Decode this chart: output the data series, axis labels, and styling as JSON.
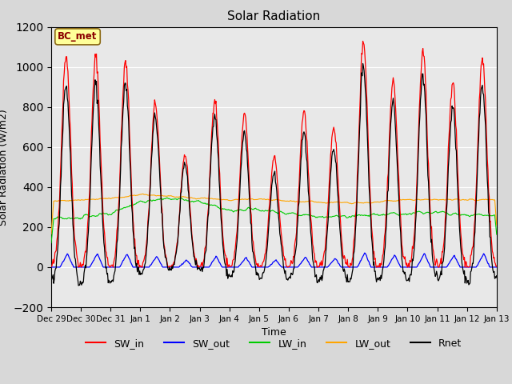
{
  "title": "Solar Radiation",
  "xlabel": "Time",
  "ylabel": "Solar Radiation (W/m2)",
  "ylim": [
    -200,
    1200
  ],
  "annotation": "BC_met",
  "legend_entries": [
    "SW_in",
    "SW_out",
    "LW_in",
    "LW_out",
    "Rnet"
  ],
  "line_colors": {
    "SW_in": "#FF0000",
    "SW_out": "#0000FF",
    "LW_in": "#00CC00",
    "LW_out": "#FFA500",
    "Rnet": "#000000"
  },
  "background_color": "#D8D8D8",
  "plot_bg_color": "#E8E8E8",
  "tick_labels": [
    "Dec 29",
    "Dec 30",
    "Dec 31",
    "Jan 1",
    "Jan 2",
    "Jan 3",
    "Jan 4",
    "Jan 5",
    "Jan 6",
    "Jan 7",
    "Jan 8",
    "Jan 9",
    "Jan 10",
    "Jan 11",
    "Jan 12",
    "Jan 13"
  ],
  "yticks": [
    -200,
    0,
    200,
    400,
    600,
    800,
    1000,
    1200
  ],
  "day_peaks_sw_in": [
    1060,
    1050,
    1020,
    820,
    560,
    840,
    760,
    550,
    780,
    700,
    1130,
    930,
    1080,
    920,
    1040
  ],
  "lw_in_trend": [
    240,
    245,
    270,
    330,
    340,
    325,
    280,
    290,
    270,
    250,
    255,
    260,
    270,
    275,
    260,
    260
  ],
  "lw_out_trend": [
    330,
    335,
    345,
    360,
    355,
    345,
    335,
    340,
    330,
    325,
    320,
    325,
    335,
    340,
    335,
    340
  ],
  "figsize": [
    6.4,
    4.8
  ],
  "dpi": 100
}
